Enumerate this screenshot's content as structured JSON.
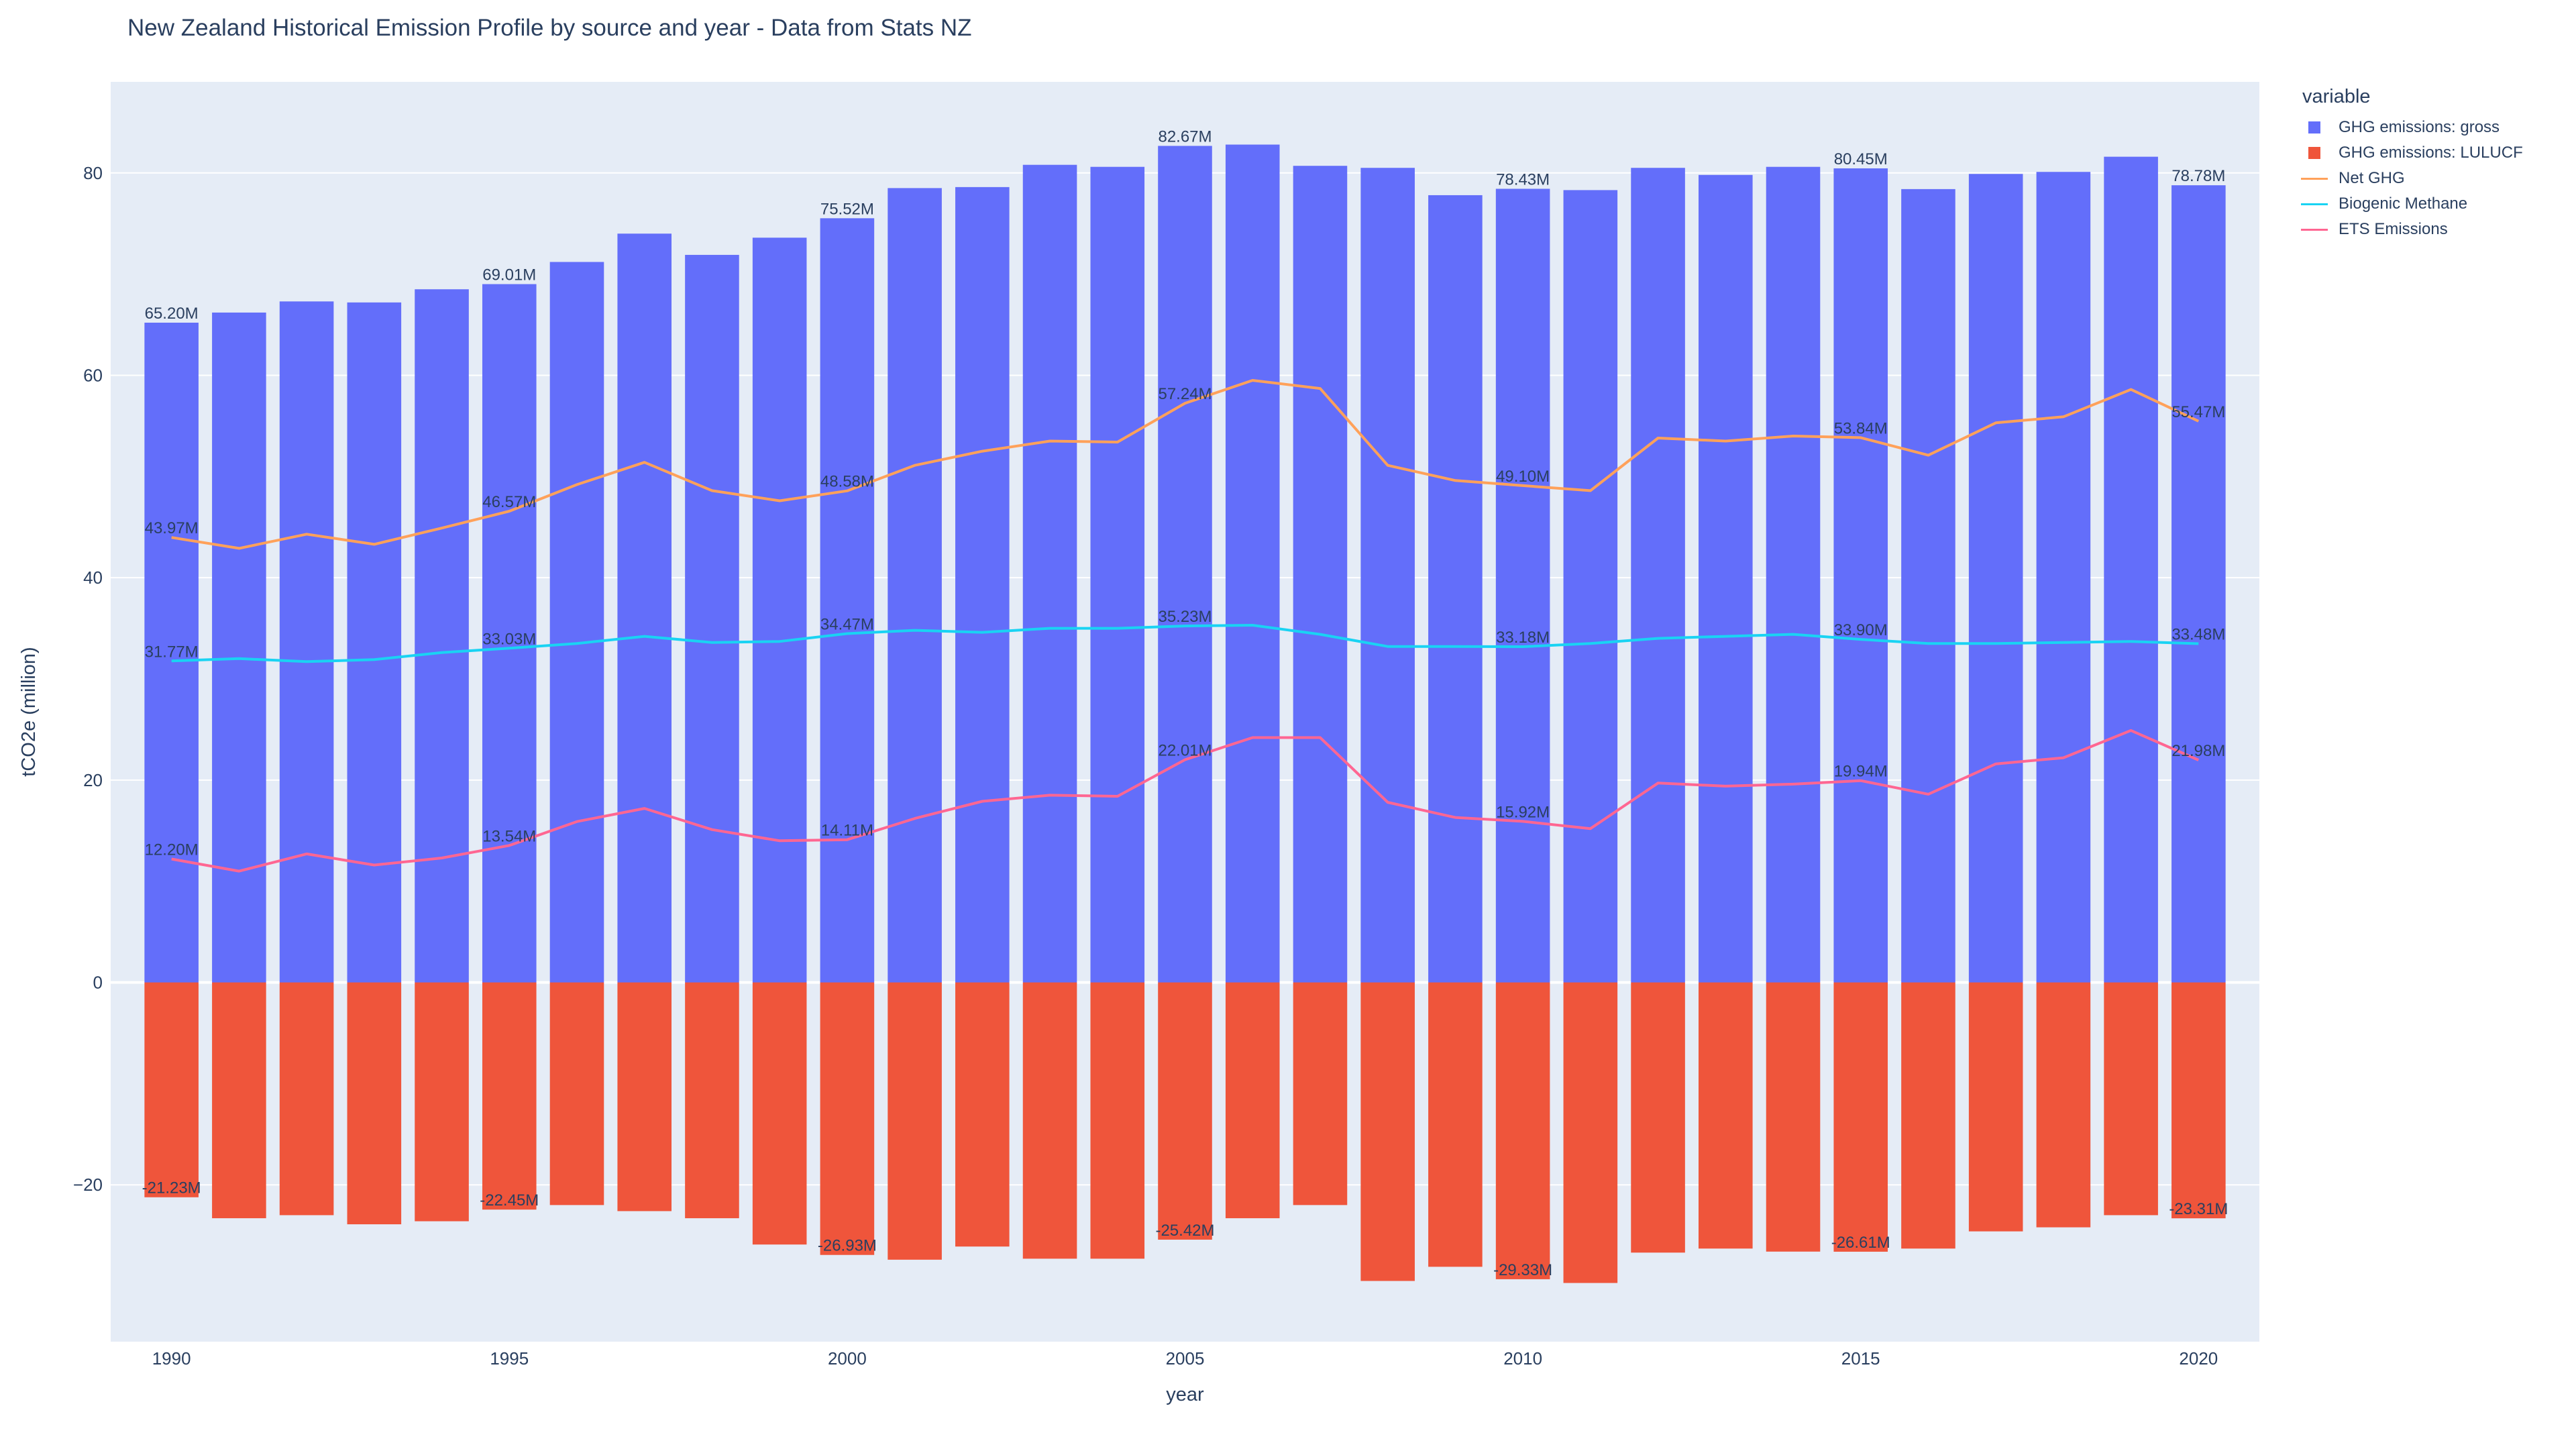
{
  "chart_data": {
    "type": "bar",
    "title": "New Zealand Historical Emission Profile by source and year - Data from Stats NZ",
    "xlabel": "year",
    "ylabel": "tCO2e (million)",
    "legend_title": "variable",
    "legend_position": "top-right, outside plot",
    "barmode": "relative",
    "grid": true,
    "background": "#E5ECF6",
    "xlim": [
      1989.1,
      2020.9
    ],
    "ylim": [
      -35.5,
      89
    ],
    "x_ticks": [
      1990,
      1995,
      2000,
      2005,
      2010,
      2015,
      2020
    ],
    "y_ticks": [
      -20,
      0,
      20,
      40,
      60,
      80
    ],
    "y_tick_labels": [
      "−20",
      "0",
      "20",
      "40",
      "60",
      "80"
    ],
    "x": [
      1990,
      1991,
      1992,
      1993,
      1994,
      1995,
      1996,
      1997,
      1998,
      1999,
      2000,
      2001,
      2002,
      2003,
      2004,
      2005,
      2006,
      2007,
      2008,
      2009,
      2010,
      2011,
      2012,
      2013,
      2014,
      2015,
      2016,
      2017,
      2018,
      2019,
      2020
    ],
    "series": [
      {
        "name": "GHG emissions: gross",
        "kind": "bar",
        "color": "#636EFA",
        "values": [
          65.2,
          66.2,
          67.3,
          67.2,
          68.5,
          69.01,
          71.2,
          74.0,
          71.9,
          73.6,
          75.52,
          78.5,
          78.6,
          80.8,
          80.6,
          82.67,
          82.8,
          80.7,
          80.5,
          77.8,
          78.43,
          78.3,
          80.5,
          79.8,
          80.6,
          80.45,
          78.4,
          79.9,
          80.1,
          81.6,
          78.78
        ]
      },
      {
        "name": "GHG emissions: LULUCF",
        "kind": "bar",
        "color": "#EF553B",
        "values": [
          -21.23,
          -23.3,
          -23.0,
          -23.9,
          -23.6,
          -22.45,
          -22.0,
          -22.6,
          -23.3,
          -25.9,
          -26.93,
          -27.4,
          -26.1,
          -27.3,
          -27.3,
          -25.42,
          -23.3,
          -22.0,
          -29.5,
          -28.1,
          -29.33,
          -29.7,
          -26.7,
          -26.3,
          -26.6,
          -26.61,
          -26.3,
          -24.6,
          -24.2,
          -23.0,
          -23.31
        ]
      },
      {
        "name": "Net GHG",
        "kind": "line",
        "color": "#FFA15A",
        "values": [
          43.97,
          42.9,
          44.3,
          43.3,
          44.9,
          46.57,
          49.2,
          51.4,
          48.6,
          47.6,
          48.58,
          51.1,
          52.5,
          53.5,
          53.4,
          57.24,
          59.5,
          58.7,
          51.1,
          49.6,
          49.1,
          48.6,
          53.8,
          53.5,
          54.0,
          53.84,
          52.1,
          55.3,
          55.9,
          58.6,
          55.47
        ]
      },
      {
        "name": "Biogenic Methane",
        "kind": "line",
        "color": "#19D3F3",
        "values": [
          31.77,
          32.0,
          31.7,
          31.9,
          32.6,
          33.03,
          33.5,
          34.2,
          33.6,
          33.7,
          34.47,
          34.8,
          34.6,
          35.0,
          35.0,
          35.23,
          35.3,
          34.4,
          33.2,
          33.2,
          33.18,
          33.5,
          34.0,
          34.2,
          34.4,
          33.9,
          33.5,
          33.5,
          33.6,
          33.7,
          33.48
        ]
      },
      {
        "name": "ETS Emissions",
        "kind": "line",
        "color": "#FF6692",
        "values": [
          12.2,
          11.0,
          12.7,
          11.6,
          12.3,
          13.54,
          15.9,
          17.2,
          15.1,
          14.0,
          14.11,
          16.2,
          17.9,
          18.5,
          18.4,
          22.01,
          24.2,
          24.2,
          17.8,
          16.3,
          15.92,
          15.2,
          19.7,
          19.4,
          19.6,
          19.94,
          18.6,
          21.6,
          22.2,
          24.9,
          21.98
        ]
      }
    ],
    "annotation_years": [
      1990,
      1995,
      2000,
      2005,
      2010,
      2015,
      2020
    ],
    "data_labels": {
      "GHG emissions: gross": [
        "65.20M",
        "69.01M",
        "75.52M",
        "82.67M",
        "78.43M",
        "80.45M",
        "78.78M"
      ],
      "GHG emissions: LULUCF": [
        "-21.23M",
        "-22.45M",
        "-26.93M",
        "-25.42M",
        "-29.33M",
        "-26.61M",
        "-23.31M"
      ],
      "Net GHG": [
        "43.97M",
        "46.57M",
        "48.58M",
        "57.24M",
        "49.10M",
        "53.84M",
        "55.47M"
      ],
      "Biogenic Methane": [
        "31.77M",
        "33.03M",
        "34.47M",
        "35.23M",
        "33.18M",
        "33.90M",
        "33.48M"
      ],
      "ETS Emissions": [
        "12.20M",
        "13.54M",
        "14.11M",
        "22.01M",
        "15.92M",
        "19.94M",
        "21.98M"
      ]
    }
  }
}
